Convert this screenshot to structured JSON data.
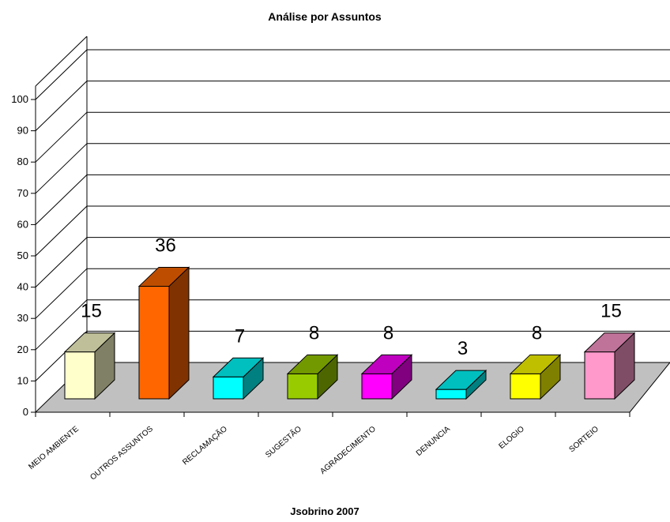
{
  "chart_data": {
    "type": "bar",
    "title": "Análise por Assuntos",
    "xlabel": "Jsobrino 2007",
    "ylabel": "",
    "ylim": [
      0,
      100
    ],
    "yticks": [
      "0",
      "10",
      "20",
      "30",
      "40",
      "50",
      "60",
      "70",
      "80",
      "90",
      "100"
    ],
    "categories": [
      "MEIO AMBIENTE",
      "OUTROS ASSUNTOS",
      "RECLAMAÇÃO",
      "SUGESTÃO",
      "AGRADECIMENTO",
      "DENUNCIA",
      "ELOGIO",
      "SORTEIO"
    ],
    "values": [
      15,
      36,
      7,
      8,
      8,
      3,
      8,
      15
    ],
    "data_labels": [
      "15",
      "36",
      "7",
      "8",
      "8",
      "3",
      "8",
      "15"
    ],
    "colors": [
      "#ffffcc",
      "#ff6600",
      "#00ffff",
      "#99cc00",
      "#ff00ff",
      "#00ffff",
      "#ffff00",
      "#ff99cc"
    ],
    "grid": true,
    "floor_color": "#c0c0c0"
  }
}
